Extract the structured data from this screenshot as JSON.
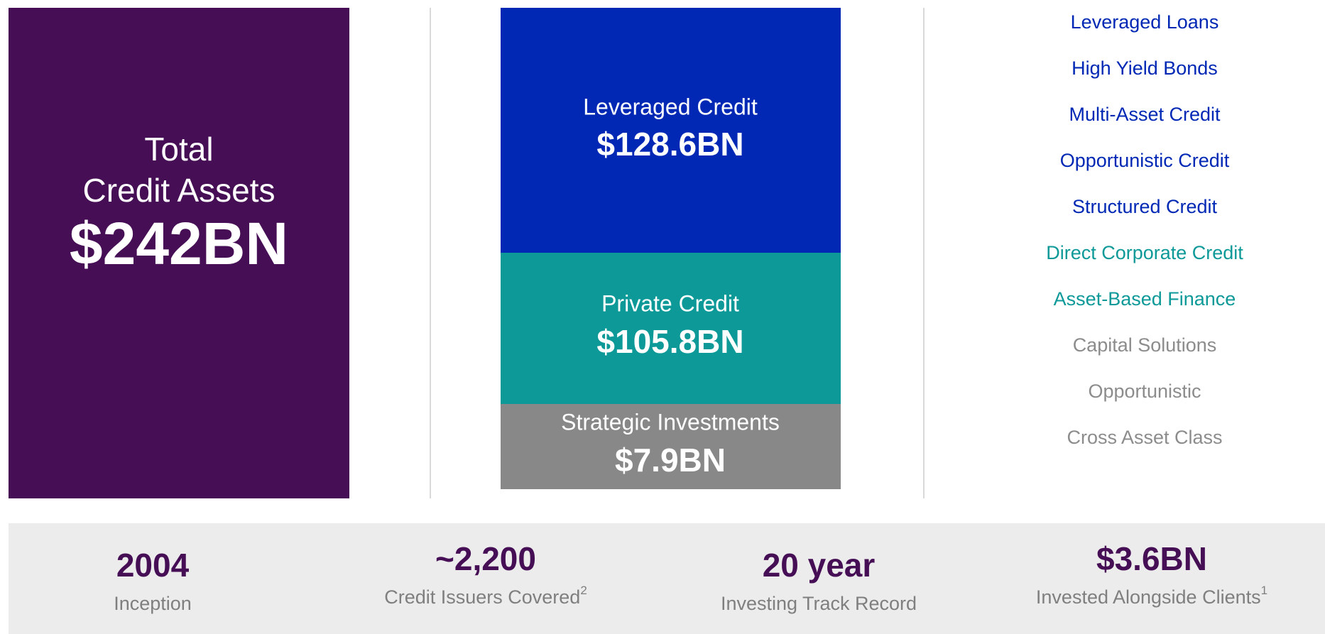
{
  "total": {
    "lines": [
      "Total",
      "Credit Assets"
    ],
    "value": "$242BN",
    "color": "#460f55"
  },
  "segments": [
    {
      "label": "Leveraged Credit",
      "value": "$128.6BN",
      "color": "#0028b4"
    },
    {
      "label": "Private Credit",
      "value": "$105.8BN",
      "color": "#0e9999"
    },
    {
      "label": "Strategic Investments",
      "value": "$7.9BN",
      "color": "#888888"
    }
  ],
  "strategies": [
    {
      "name": "Leveraged Loans",
      "color": "#0028b4"
    },
    {
      "name": "High Yield Bonds",
      "color": "#0028b4"
    },
    {
      "name": "Multi-Asset Credit",
      "color": "#0028b4"
    },
    {
      "name": "Opportunistic Credit",
      "color": "#0028b4"
    },
    {
      "name": "Structured Credit",
      "color": "#0028b4"
    },
    {
      "name": "Direct Corporate Credit",
      "color": "#0e9999"
    },
    {
      "name": "Asset-Based Finance",
      "color": "#0e9999"
    },
    {
      "name": "Capital Solutions",
      "color": "#8c8c8c"
    },
    {
      "name": "Opportunistic",
      "color": "#8c8c8c"
    },
    {
      "name": "Cross Asset Class",
      "color": "#8c8c8c"
    }
  ],
  "stats": [
    {
      "value": "2004",
      "label": "Inception"
    },
    {
      "value": "~2,200",
      "label": "Credit Issuers Covered",
      "footnote": "2"
    },
    {
      "value": "20 year",
      "label": "Investing Track Record"
    },
    {
      "value": "$3.6BN",
      "label": "Invested Alongside Clients",
      "footnote": "1"
    }
  ]
}
